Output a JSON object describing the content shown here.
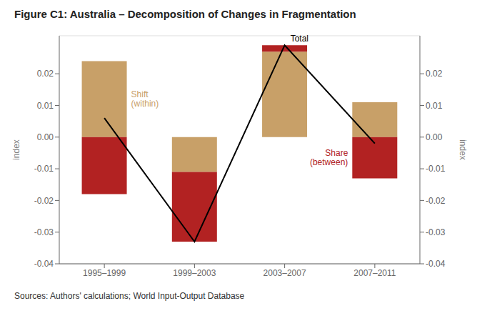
{
  "chart_data": {
    "type": "bar",
    "title": "Figure C1: Australia – Decomposition of Changes in Fragmentation",
    "categories": [
      "1995–1999",
      "1999–2003",
      "2003–2007",
      "2007–2011"
    ],
    "series": [
      {
        "name": "Shift\n(within)",
        "color": "#C8A068",
        "values": [
          0.024,
          -0.011,
          0.027,
          0.011
        ]
      },
      {
        "name": "Share\n(between)",
        "color": "#B22222",
        "values": [
          -0.018,
          -0.022,
          0.002,
          -0.013
        ]
      },
      {
        "name": "Total",
        "type": "line",
        "color": "#000000",
        "values": [
          0.006,
          -0.033,
          0.029,
          -0.002
        ]
      }
    ],
    "stacked": true,
    "ylabel": "index",
    "y2label": "index",
    "ylim": [
      -0.04,
      0.032
    ],
    "yticks": [
      -0.04,
      -0.03,
      -0.02,
      -0.01,
      {
        "value": 0,
        "label": "0.00"
      },
      0.01,
      0.02
    ],
    "y2lim": [
      -0.04,
      0.032
    ],
    "y2ticks": [
      -0.04,
      -0.03,
      -0.02,
      -0.01,
      {
        "value": 0,
        "label": "0.00"
      },
      0.01,
      0.02
    ],
    "grid": true,
    "caption": "Sources:  Authors' calculations; World Input-Output Database"
  }
}
